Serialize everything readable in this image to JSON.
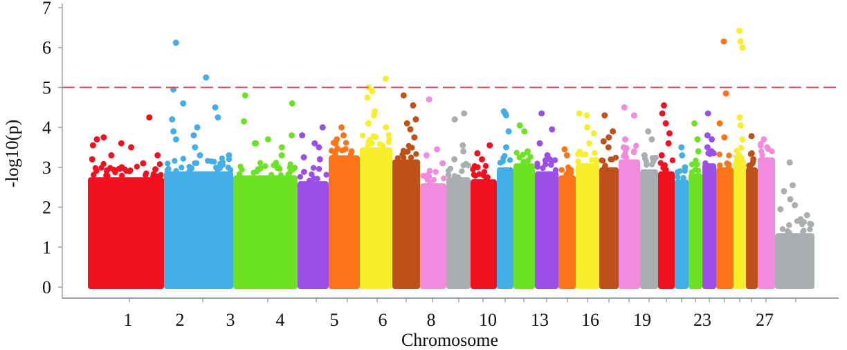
{
  "chart_data": {
    "type": "scatter",
    "subtype": "manhattan",
    "title": "",
    "xlabel": "Chromosome",
    "ylabel": "-log10(p)",
    "ylim": [
      0,
      7
    ],
    "yticks": [
      0,
      1,
      2,
      3,
      4,
      5,
      6,
      7
    ],
    "xtick_labels": [
      "1",
      "2",
      "3",
      "4",
      "5",
      "6",
      "8",
      "10",
      "13",
      "16",
      "19",
      "23",
      "27"
    ],
    "threshold": {
      "value": 5,
      "color": "#e8506a",
      "style": "dashed"
    },
    "grid": false,
    "legend": "none",
    "chromosomes": [
      {
        "chr": 1,
        "color": "#f0101e",
        "base": 2.75,
        "peaks": [
          3.55,
          3.5,
          3.7,
          3.6,
          3.3,
          3.2,
          3.0,
          4.25,
          3.75,
          3.1,
          2.95,
          3.3
        ]
      },
      {
        "chr": 2,
        "color": "#44aee6",
        "base": 2.9,
        "peaks": [
          3.8,
          3.5,
          3.3,
          6.12,
          5.25,
          4.95,
          4.6,
          4.5,
          4.2,
          4.0,
          3.9,
          3.7,
          3.3,
          4.25
        ]
      },
      {
        "chr": 3,
        "color": "#6ce224",
        "base": 2.8,
        "peaks": [
          3.6,
          3.3,
          3.8,
          4.8,
          4.6,
          4.15,
          3.7,
          3.5,
          3.6,
          3.0
        ]
      },
      {
        "chr": 4,
        "color": "#9b4fe8",
        "base": 2.65,
        "peaks": [
          3.25,
          3.5,
          4.0,
          3.6,
          3.2,
          3.8
        ]
      },
      {
        "chr": 5,
        "color": "#fb7417",
        "base": 3.3,
        "peaks": [
          3.7,
          4.0,
          3.4,
          3.8
        ]
      },
      {
        "chr": 6,
        "color": "#f8ee2c",
        "base": 3.5,
        "peaks": [
          4.75,
          4.4,
          4.1,
          4.3,
          5.22,
          5.0,
          4.9,
          4.0
        ]
      },
      {
        "chr": 7,
        "color": "#c0501a",
        "base": 3.2,
        "peaks": [
          4.8,
          4.55,
          4.2,
          4.1,
          3.95,
          3.75
        ]
      },
      {
        "chr": 8,
        "color": "#f28ae0",
        "base": 2.6,
        "peaks": [
          4.7,
          3.45,
          3.1,
          3.3
        ]
      },
      {
        "chr": 9,
        "color": "#a9aeb0",
        "base": 2.75,
        "peaks": [
          4.2,
          4.35,
          3.55,
          3.2,
          3.4
        ]
      },
      {
        "chr": 10,
        "color": "#f0101e",
        "base": 2.7,
        "peaks": [
          3.35,
          3.2,
          3.55,
          3.0
        ]
      },
      {
        "chr": 11,
        "color": "#44aee6",
        "base": 3.0,
        "peaks": [
          4.4,
          4.3,
          3.9,
          4.35,
          3.5
        ]
      },
      {
        "chr": 12,
        "color": "#6ce224",
        "base": 3.1,
        "peaks": [
          4.05,
          3.9,
          3.4
        ]
      },
      {
        "chr": 13,
        "color": "#9b4fe8",
        "base": 2.9,
        "peaks": [
          4.35,
          3.95,
          3.6,
          3.3,
          3.2
        ]
      },
      {
        "chr": 14,
        "color": "#fb7417",
        "base": 2.8,
        "peaks": [
          3.45,
          3.3
        ]
      },
      {
        "chr": 15,
        "color": "#f8ee2c",
        "base": 3.1,
        "peaks": [
          4.35,
          4.3,
          3.85,
          3.6,
          4.0
        ]
      },
      {
        "chr": 16,
        "color": "#c0501a",
        "base": 3.0,
        "peaks": [
          4.3,
          3.9,
          3.65,
          3.5,
          3.75
        ]
      },
      {
        "chr": 17,
        "color": "#f28ae0",
        "base": 3.2,
        "peaks": [
          4.5,
          4.3,
          3.7,
          3.5
        ]
      },
      {
        "chr": 18,
        "color": "#a9aeb0",
        "base": 2.95,
        "peaks": [
          3.9,
          3.7,
          3.3
        ]
      },
      {
        "chr": 19,
        "color": "#f0101e",
        "base": 2.9,
        "peaks": [
          4.35,
          4.1,
          3.85,
          4.55,
          3.6,
          3.3
        ]
      },
      {
        "chr": 20,
        "color": "#44aee6",
        "base": 2.7,
        "peaks": [
          3.5,
          3.3,
          3.0
        ]
      },
      {
        "chr": 21,
        "color": "#6ce224",
        "base": 2.85,
        "peaks": [
          4.1,
          3.7,
          3.4
        ]
      },
      {
        "chr": 22,
        "color": "#9b4fe8",
        "base": 3.1,
        "peaks": [
          4.35,
          3.7,
          3.5,
          3.8
        ]
      },
      {
        "chr": 23,
        "color": "#fb7417",
        "base": 3.0,
        "peaks": [
          6.15,
          4.85,
          4.1,
          3.75
        ]
      },
      {
        "chr": 24,
        "color": "#f8ee2c",
        "base": 3.2,
        "peaks": [
          6.42,
          6.15,
          6.0,
          4.25,
          4.05,
          3.7
        ]
      },
      {
        "chr": 25,
        "color": "#c0501a",
        "base": 3.0,
        "peaks": [
          3.78,
          3.35,
          3.2
        ]
      },
      {
        "chr": 26,
        "color": "#f28ae0",
        "base": 3.25,
        "peaks": [
          3.7,
          3.5
        ]
      },
      {
        "chr": 27,
        "color": "#a9aeb0",
        "base": 1.35,
        "peaks": [
          3.12,
          2.55,
          2.4,
          2.2,
          1.8,
          1.95,
          2.05,
          1.7
        ]
      }
    ]
  }
}
